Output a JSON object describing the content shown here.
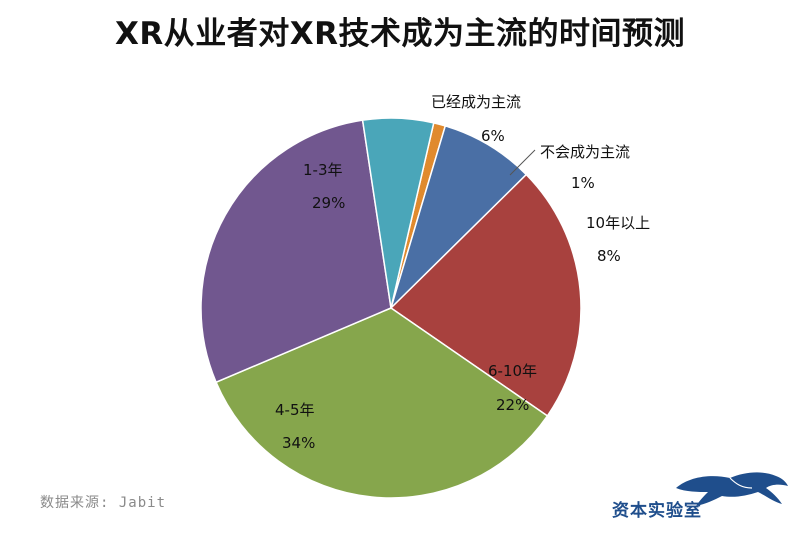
{
  "title": "XR从业者对XR技术成为主流的时间预测",
  "source": "数据来源: Jabit",
  "logo": {
    "text": "资本实验室"
  },
  "chart_data": {
    "type": "pie",
    "title": "XR从业者对XR技术成为主流的时间预测",
    "start": "top",
    "direction": "clockwise",
    "slices": [
      {
        "label": "不会成为主流",
        "value": 1,
        "value_label": "1%",
        "color": "#e08a2e"
      },
      {
        "label": "10年以上",
        "value": 8,
        "value_label": "8%",
        "color": "#4a6fa5"
      },
      {
        "label": "6-10年",
        "value": 22,
        "value_label": "22%",
        "color": "#a8413e"
      },
      {
        "label": "4-5年",
        "value": 34,
        "value_label": "34%",
        "color": "#86a64c"
      },
      {
        "label": "1-3年",
        "value": 29,
        "value_label": "29%",
        "color": "#71578f"
      },
      {
        "label": "已经成为主流",
        "value": 6,
        "value_label": "6%",
        "color": "#4aa6b9"
      }
    ]
  }
}
